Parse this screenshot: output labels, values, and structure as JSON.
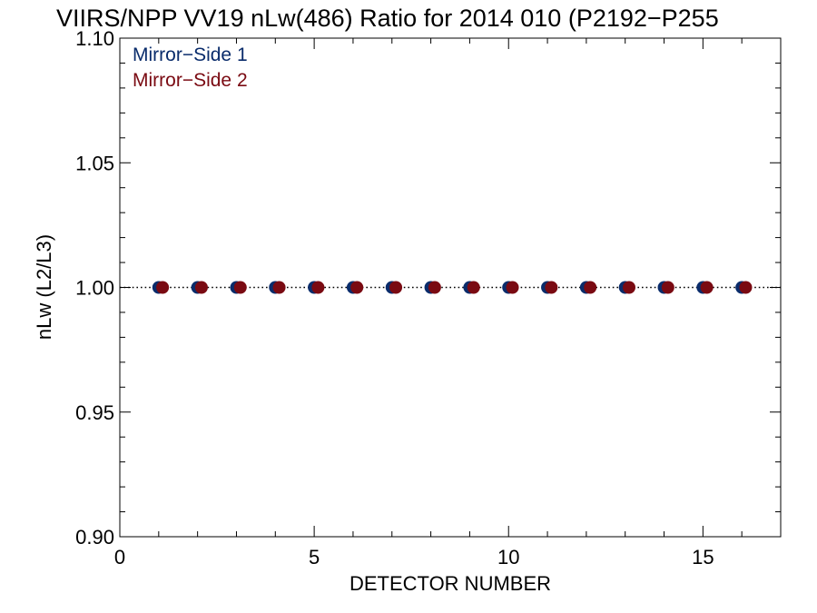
{
  "chart_data": {
    "type": "scatter",
    "title": "VIIRS/NPP VV19 nLw(486) Ratio for 2014 010 (P2192−P255",
    "xlabel": "DETECTOR NUMBER",
    "ylabel": "nLw (L2/L3)",
    "xlim": [
      0,
      17
    ],
    "ylim": [
      0.9,
      1.1
    ],
    "xticks": [
      0,
      5,
      10,
      15
    ],
    "xtick_labels": [
      "0",
      "5",
      "10",
      "15"
    ],
    "yticks": [
      0.9,
      0.95,
      1.0,
      1.05,
      1.1
    ],
    "ytick_labels": [
      "0.90",
      "0.95",
      "1.00",
      "1.05",
      "1.10"
    ],
    "reference_line": {
      "y": 1.0,
      "style": "dotted"
    },
    "legend_position": "top-left",
    "grid": false,
    "series": [
      {
        "name": "Mirror−Side 1",
        "color": "#0a2c6b",
        "x": [
          1,
          2,
          3,
          4,
          5,
          6,
          7,
          8,
          9,
          10,
          11,
          12,
          13,
          14,
          15,
          16
        ],
        "y": [
          1.0,
          1.0,
          1.0,
          1.0,
          1.0,
          1.0,
          1.0,
          1.0,
          1.0,
          1.0,
          1.0,
          1.0,
          1.0,
          1.0,
          1.0,
          1.0
        ]
      },
      {
        "name": "Mirror−Side 2",
        "color": "#7a0a12",
        "x": [
          1.1,
          2.1,
          3.1,
          4.1,
          5.1,
          6.1,
          7.1,
          8.1,
          9.1,
          10.1,
          11.1,
          12.1,
          13.1,
          14.1,
          15.1,
          16.1
        ],
        "y": [
          1.0,
          1.0,
          1.0,
          1.0,
          1.0,
          1.0,
          1.0,
          1.0,
          1.0,
          1.0,
          1.0,
          1.0,
          1.0,
          1.0,
          1.0,
          1.0
        ]
      }
    ]
  }
}
